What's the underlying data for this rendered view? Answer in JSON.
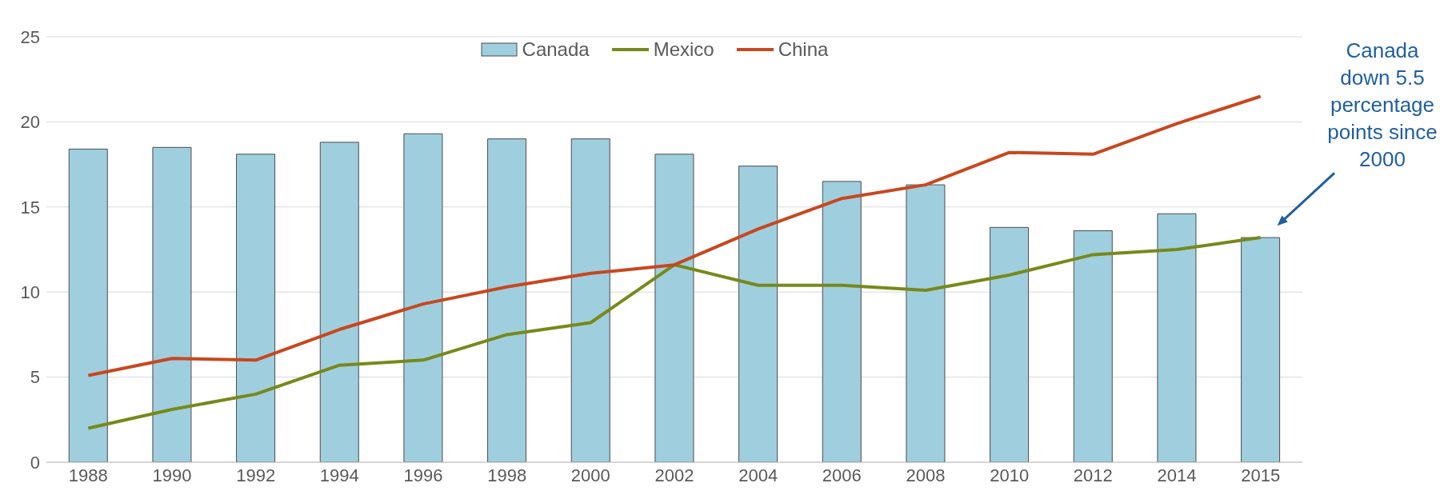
{
  "chart_data": {
    "type": "bar",
    "categories": [
      "1988",
      "1990",
      "1992",
      "1994",
      "1996",
      "1998",
      "2000",
      "2002",
      "2004",
      "2006",
      "2008",
      "2010",
      "2012",
      "2014",
      "2015"
    ],
    "series": [
      {
        "name": "Canada",
        "color": "#9fcfde",
        "values": [
          18.4,
          18.5,
          18.1,
          18.8,
          19.3,
          19.0,
          19.0,
          18.1,
          17.4,
          16.5,
          16.3,
          13.8,
          13.6,
          14.6,
          13.2
        ]
      },
      {
        "name": "Mexico",
        "type": "line",
        "color": "#77891b",
        "values": [
          2.0,
          3.1,
          4.0,
          5.7,
          6.0,
          7.5,
          8.2,
          11.6,
          10.4,
          10.4,
          10.1,
          11.0,
          12.2,
          12.5,
          13.2
        ]
      },
      {
        "name": "China",
        "type": "line",
        "color": "#c8471f",
        "values": [
          5.1,
          6.1,
          6.0,
          7.8,
          9.3,
          10.3,
          11.1,
          11.6,
          13.7,
          15.5,
          16.3,
          18.2,
          18.1,
          19.9,
          21.5
        ]
      }
    ],
    "ylim": [
      0,
      25
    ],
    "yticks": [
      0,
      5,
      10,
      15,
      20,
      25
    ],
    "grid": "y",
    "legend": "top",
    "marker": "none",
    "line_style": "solid",
    "annotations": [
      "Canada down 5.5 percentage points since 2000"
    ]
  }
}
